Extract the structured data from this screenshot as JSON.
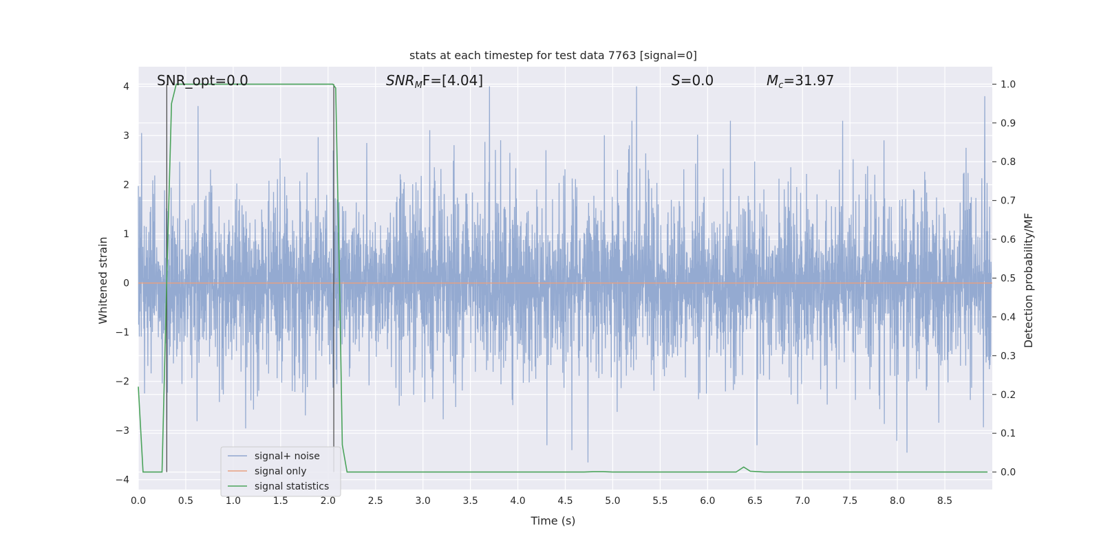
{
  "chart_data": {
    "type": "line",
    "title": "stats at each timestep for test data 7763 [signal=0]",
    "xlabel": "Time (s)",
    "ylabel_left": "Whitened strain",
    "ylabel_right": "Detection probability/MF",
    "xlim": [
      0.0,
      9.0
    ],
    "ylim_left": [
      -4.2,
      4.4
    ],
    "ylim_right": [
      -0.045,
      1.045
    ],
    "xticks": [
      "0.0",
      "0.5",
      "1.0",
      "1.5",
      "2.0",
      "2.5",
      "3.0",
      "3.5",
      "4.0",
      "4.5",
      "5.0",
      "5.5",
      "6.0",
      "6.5",
      "7.0",
      "7.5",
      "8.0",
      "8.5"
    ],
    "yticks_left": [
      "4",
      "3",
      "2",
      "1",
      "0",
      "−1",
      "−2",
      "−3",
      "−4"
    ],
    "yticks_right": [
      "1.0",
      "0.9",
      "0.8",
      "0.7",
      "0.6",
      "0.5",
      "0.4",
      "0.3",
      "0.2",
      "0.1",
      "0.0"
    ],
    "grid": true,
    "legend_position": "lower-left",
    "colors": {
      "noise": "#8fa6cf",
      "signal": "#e8a07f",
      "stats": "#4aa35a",
      "vline": "#444444",
      "axes_bg": "#eaeaf2",
      "grid": "#ffffff"
    },
    "series": [
      {
        "name": "signal+ noise",
        "axis": "left",
        "kind": "noise-band",
        "envelope_upper": 2.2,
        "envelope_lower": -2.2,
        "notable_peaks": [
          {
            "x": 0.63,
            "y": 3.6
          },
          {
            "x": 3.7,
            "y": 4.0
          },
          {
            "x": 5.25,
            "y": 4.0
          },
          {
            "x": 8.92,
            "y": 3.8
          },
          {
            "x": 4.74,
            "y": -3.65
          },
          {
            "x": 8.1,
            "y": -3.45
          },
          {
            "x": 4.57,
            "y": -3.4
          }
        ]
      },
      {
        "name": "signal only",
        "axis": "left",
        "x": [
          0.0,
          9.0
        ],
        "y": [
          0.0,
          0.0
        ]
      },
      {
        "name": "signal statistics",
        "axis": "right",
        "x": [
          0.0,
          0.05,
          0.25,
          0.3,
          0.35,
          0.4,
          1.0,
          2.0,
          2.05,
          2.08,
          2.12,
          2.15,
          2.2,
          2.5,
          3.0,
          4.0,
          4.7,
          4.8,
          4.9,
          5.0,
          6.0,
          6.3,
          6.38,
          6.45,
          6.6,
          7.0,
          8.0,
          8.95
        ],
        "y": [
          0.22,
          0.0,
          0.0,
          0.5,
          0.95,
          1.0,
          1.0,
          1.0,
          1.0,
          0.99,
          0.5,
          0.07,
          0.0,
          0.0,
          0.0,
          0.0,
          0.0,
          0.001,
          0.001,
          0.0,
          0.0,
          0.0,
          0.013,
          0.002,
          0.0,
          0.0,
          0.0,
          0.0
        ]
      }
    ],
    "vlines": [
      0.3,
      2.06
    ],
    "annotations": [
      {
        "name": "snr-opt",
        "text": "SNR_opt=0.0"
      },
      {
        "name": "snr-mf",
        "base": "SNR",
        "sub": "M",
        "rest": "F=[4.04]"
      },
      {
        "name": "s-value",
        "base": "S",
        "rest": "=0.0"
      },
      {
        "name": "chirp-mass",
        "base": "M",
        "sub": "c",
        "rest": "=31.97"
      }
    ],
    "legend": [
      "signal+ noise",
      "signal only",
      "signal statistics"
    ]
  }
}
